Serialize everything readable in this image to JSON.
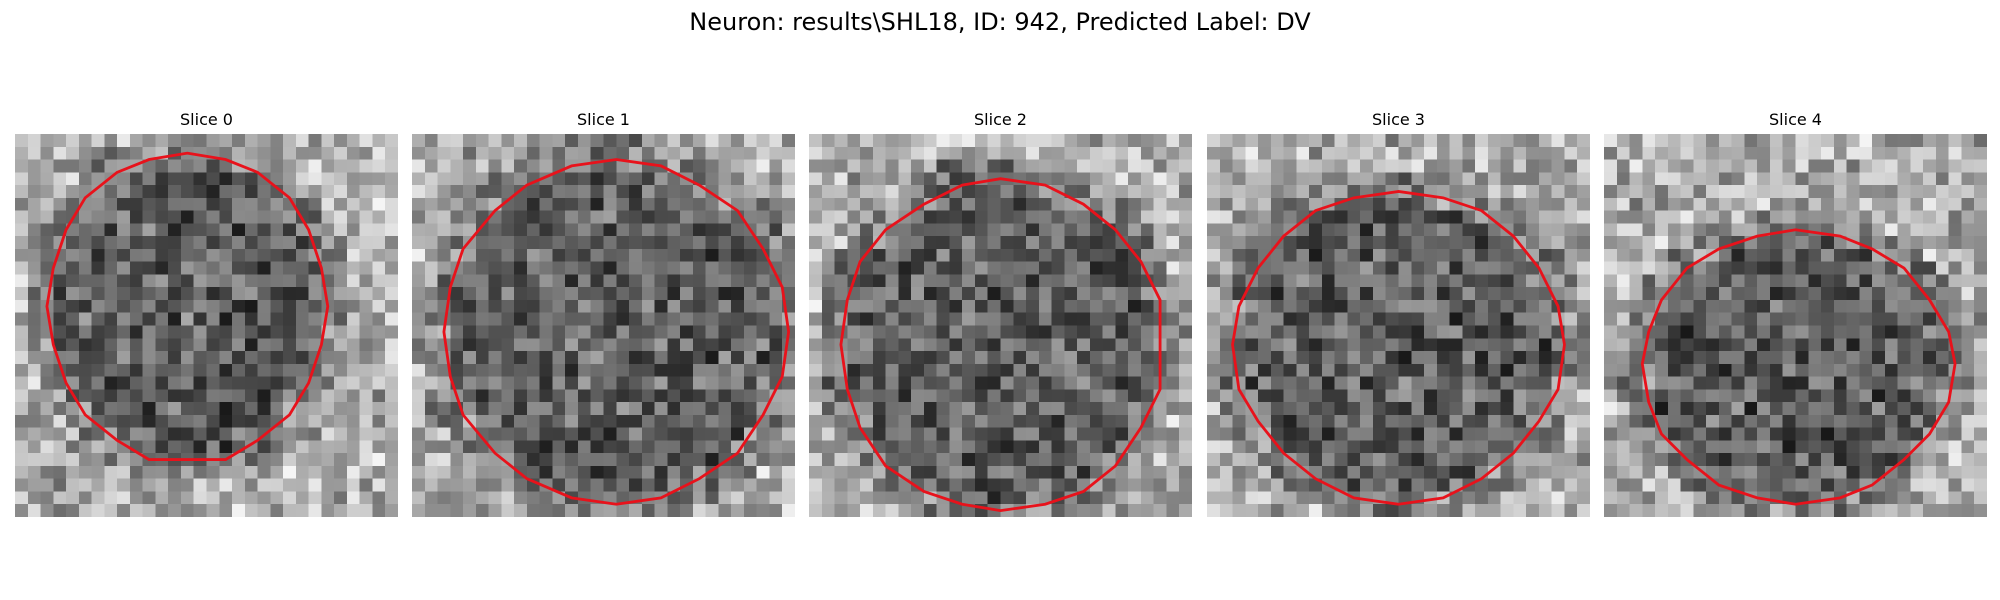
{
  "figure": {
    "title": "Neuron: results\\SHL18, ID: 942, Predicted Label: DV"
  },
  "panels": [
    {
      "title": "Slice 0"
    },
    {
      "title": "Slice 1"
    },
    {
      "title": "Slice 2"
    },
    {
      "title": "Slice 3"
    },
    {
      "title": "Slice 4"
    }
  ],
  "colors": {
    "outline": "#e8121b",
    "background": "#ffffff",
    "text": "#000000"
  }
}
